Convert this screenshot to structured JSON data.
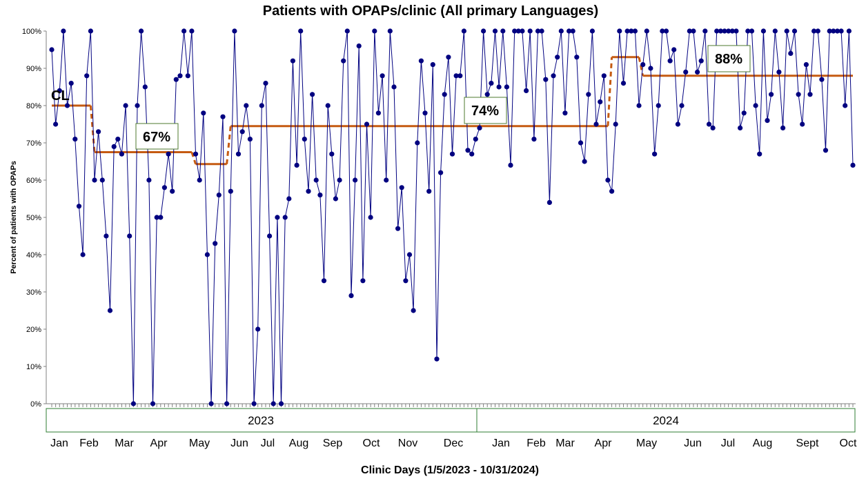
{
  "chart_data": {
    "type": "line",
    "title": "Patients with OPAPs/clinic (All primary Languages)",
    "xlabel": "Clinic Days (1/5/2023 - 10/31/2024)",
    "ylabel": "Percent of patients with OPAPs",
    "ylim": [
      0,
      100
    ],
    "y_ticks": [
      "0%",
      "10%",
      "20%",
      "30%",
      "40%",
      "50%",
      "60%",
      "70%",
      "80%",
      "90%",
      "100%"
    ],
    "years": [
      "2023",
      "2024"
    ],
    "months": [
      "Jan",
      "Feb",
      "Mar",
      "Apr",
      "May",
      "Jun",
      "Jul",
      "Aug",
      "Sep",
      "Oct",
      "Nov",
      "Dec",
      "Jan",
      "Feb",
      "Mar",
      "Apr",
      "May",
      "Jun",
      "Jul",
      "Aug",
      "Sept",
      "Oct"
    ],
    "series": [
      {
        "values": [
          95,
          75,
          84,
          100,
          80,
          86,
          71,
          53,
          40,
          88,
          100,
          60,
          73,
          60,
          45,
          25,
          69,
          71,
          67,
          80,
          45,
          0,
          80,
          100,
          85,
          60,
          0,
          50,
          50,
          58,
          67,
          57,
          87,
          88,
          100,
          88,
          100,
          67,
          60,
          78,
          40,
          0,
          43,
          56,
          77,
          0,
          57,
          100,
          67,
          73,
          80,
          71,
          0,
          20,
          80,
          86,
          45,
          0,
          50,
          0,
          50,
          55,
          92,
          64,
          100,
          71,
          57,
          83,
          60,
          56,
          33,
          80,
          67,
          55,
          60,
          92,
          100,
          29,
          60,
          96,
          33,
          75,
          50,
          100,
          78,
          88,
          60,
          100,
          85,
          47,
          58,
          33,
          40,
          25,
          70,
          92,
          78,
          57,
          91,
          12,
          62,
          83,
          93,
          67,
          88,
          88,
          100,
          68,
          67,
          71,
          74,
          100,
          83,
          86,
          100,
          85,
          100,
          85,
          64,
          100,
          100,
          100,
          84,
          100,
          71,
          100,
          100,
          87,
          54,
          88,
          93,
          100,
          78,
          100,
          100,
          93,
          70,
          65,
          83,
          100,
          75,
          81,
          88,
          60,
          57,
          75,
          100,
          86,
          100,
          100,
          100,
          80,
          91,
          100,
          90,
          67,
          80,
          100,
          100,
          92,
          95,
          75,
          80,
          89,
          100,
          100,
          89,
          92,
          100,
          75,
          74,
          100,
          100,
          100,
          100,
          100,
          100,
          74,
          78,
          100,
          100,
          80,
          67,
          100,
          76,
          83,
          100,
          89,
          74,
          100,
          94,
          100,
          83,
          75,
          91,
          83,
          100,
          100,
          87,
          68,
          100,
          100,
          100,
          100,
          80,
          100,
          64
        ]
      }
    ],
    "center_line": {
      "label": "CL",
      "segments": [
        {
          "from": 0,
          "to": 10,
          "value": 80
        },
        {
          "from": 11,
          "to": 36,
          "value": 67.5
        },
        {
          "from": 37,
          "to": 45,
          "value": 64.3
        },
        {
          "from": 46,
          "to": 143,
          "value": 74.5
        },
        {
          "from": 144,
          "to": 151,
          "value": 93
        },
        {
          "from": 152,
          "to": 206,
          "value": 88
        }
      ]
    },
    "annotations": [
      "67%",
      "74%",
      "88%"
    ],
    "colors": {
      "series": "#000080",
      "center_line": "#C55A11",
      "annotation_border": "#4E7A2E",
      "axis": "#808080"
    }
  }
}
